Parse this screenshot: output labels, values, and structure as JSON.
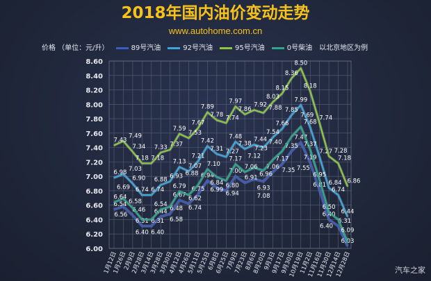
{
  "title": "2018年国内油价变动走势",
  "url": "www.autohome.com.cn",
  "unit_label": "价格 （单位：元/升）",
  "note": "以北京地区为例",
  "watermark": "汽车之家",
  "chart_data": {
    "type": "line",
    "title": "2018年国内油价变动走势",
    "ylabel": "价格 （单位：元/升）",
    "ylim": [
      6.0,
      8.6
    ],
    "yticks": [
      "6.00",
      "6.20",
      "6.40",
      "6.60",
      "6.80",
      "7.00",
      "7.20",
      "7.40",
      "7.60",
      "7.80",
      "8.00",
      "8.20",
      "8.40",
      "8.60"
    ],
    "grid": true,
    "legend_placement": "top",
    "categories": [
      "1月12日",
      "1月26日",
      "2月9日",
      "2月28日",
      "3月14日",
      "3月28日",
      "3月30日",
      "4月12日",
      "4月26日",
      "5月11日",
      "5月25日",
      "6月8日",
      "6月25日",
      "7月9日",
      "7月23日",
      "8月6日",
      "8月20日",
      "9月3日",
      "9月17日",
      "9月30日",
      "10月19日",
      "11月2日",
      "11月16日",
      "11月30日",
      "12月14日",
      "12月28日"
    ],
    "series": [
      {
        "name": "89号汽油",
        "color": "#3b5cc4",
        "values": [
          6.54,
          6.58,
          6.46,
          6.31,
          6.31,
          6.44,
          6.48,
          6.67,
          6.62,
          6.75,
          6.94,
          6.84,
          6.8,
          7.0,
          6.91,
          6.96,
          6.93,
          7.06,
          7.17,
          7.35,
          7.47,
          7.19,
          6.81,
          6.4,
          6.31,
          6.03
        ]
      },
      {
        "name": "92号汽油",
        "color": "#3ba7dc",
        "values": [
          6.98,
          7.03,
          6.9,
          6.74,
          6.74,
          6.88,
          6.93,
          7.13,
          7.07,
          7.21,
          7.42,
          7.31,
          7.27,
          7.48,
          7.38,
          7.44,
          7.4,
          7.54,
          7.66,
          7.85,
          7.99,
          7.68,
          7.27,
          6.84,
          6.74,
          6.44
        ]
      },
      {
        "name": "95号汽油",
        "color": "#8dc63f",
        "values": [
          7.43,
          7.49,
          7.34,
          7.18,
          7.18,
          7.33,
          7.37,
          7.59,
          7.53,
          7.67,
          7.89,
          7.78,
          7.74,
          7.97,
          7.86,
          7.92,
          7.88,
          8.03,
          8.15,
          8.36,
          8.5,
          8.18,
          7.74,
          7.28,
          7.18,
          6.86
        ]
      },
      {
        "name": "0号柴油",
        "color": "#2aa98c",
        "values": [
          6.64,
          6.69,
          6.56,
          6.4,
          6.4,
          6.54,
          6.58,
          6.79,
          6.74,
          6.88,
          7.1,
          6.99,
          6.94,
          7.17,
          7.06,
          7.12,
          7.08,
          7.23,
          7.35,
          7.55,
          7.69,
          7.37,
          6.95,
          6.5,
          6.4,
          6.09
        ]
      }
    ]
  }
}
